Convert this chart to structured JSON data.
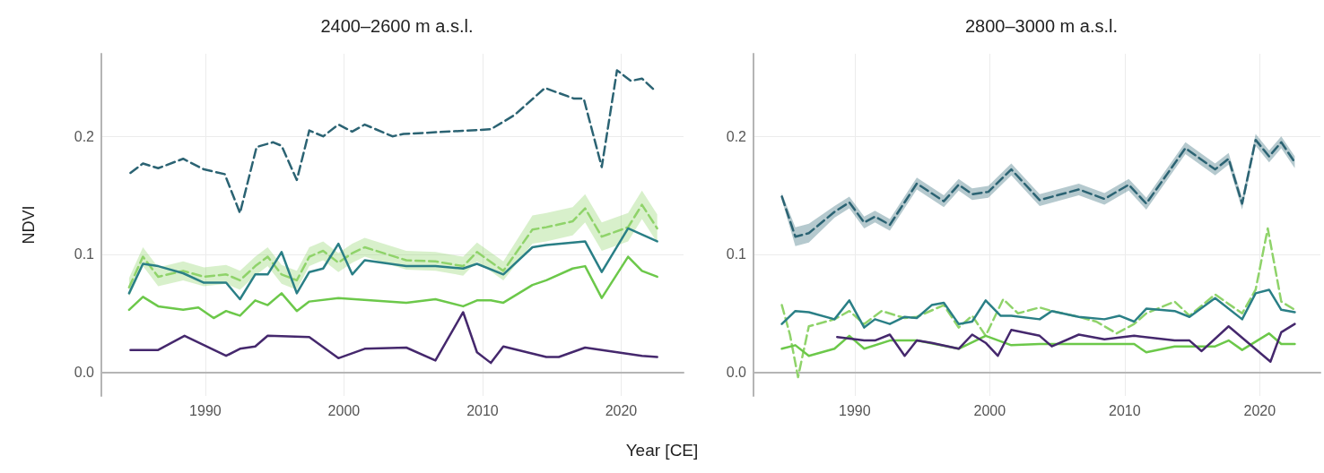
{
  "chart_data": [
    {
      "type": "line",
      "title": "2400–2600 m a.s.l.",
      "xlabel": "Year [CE]",
      "ylabel": "NDVI",
      "xlim": [
        1982.5,
        2024.5
      ],
      "ylim": [
        -0.02,
        0.27
      ],
      "xticks": [
        1990,
        2000,
        2010,
        2020
      ],
      "yticks": [
        {
          "value": 0,
          "label": "0.0"
        },
        {
          "value": 0.1,
          "label": "0.1"
        },
        {
          "value": 0.2,
          "label": "0.2"
        }
      ],
      "grid": true,
      "series": [
        {
          "color": "#2b6373",
          "line_style": "dashed",
          "x": [
            1984.6,
            1985.5,
            1986.6,
            1988.4,
            1989.9,
            1991.4,
            1992.5,
            1993.7,
            1994.9,
            1995.5,
            1996.6,
            1997.5,
            1998.5,
            1999.6,
            2000.6,
            2001.5,
            2003.5,
            2004.3,
            2010.6,
            2012.3,
            2014.5,
            2016.6,
            2017.3,
            2018.6,
            2019.7,
            2020.7,
            2021.5,
            2022.5
          ],
          "values": [
            0.169,
            0.177,
            0.173,
            0.181,
            0.172,
            0.168,
            0.135,
            0.191,
            0.195,
            0.192,
            0.163,
            0.205,
            0.2,
            0.21,
            0.204,
            0.21,
            0.2,
            0.202,
            0.206,
            0.218,
            0.241,
            0.232,
            0.232,
            0.174,
            0.256,
            0.247,
            0.249,
            0.238
          ]
        },
        {
          "color": "#8fd36a",
          "line_style": "dashed",
          "x": [
            1984.5,
            1985.5,
            1986.6,
            1988.4,
            1989.9,
            1991.5,
            1992.5,
            1993.6,
            1994.5,
            1995.5,
            1996.6,
            1997.5,
            1998.5,
            1999.6,
            2000.6,
            2001.5,
            2004.5,
            2006.6,
            2008.6,
            2009.6,
            2011.5,
            2013.6,
            2014.6,
            2016.5,
            2017.4,
            2018.6,
            2020.5,
            2021.5,
            2022.6
          ],
          "values": [
            0.072,
            0.098,
            0.081,
            0.086,
            0.081,
            0.083,
            0.078,
            0.09,
            0.098,
            0.083,
            0.078,
            0.098,
            0.103,
            0.093,
            0.101,
            0.106,
            0.095,
            0.094,
            0.09,
            0.102,
            0.086,
            0.121,
            0.123,
            0.128,
            0.139,
            0.115,
            0.123,
            0.142,
            0.122
          ],
          "lower": [
            0.064,
            0.09,
            0.073,
            0.078,
            0.073,
            0.075,
            0.07,
            0.082,
            0.09,
            0.075,
            0.07,
            0.09,
            0.095,
            0.085,
            0.093,
            0.098,
            0.087,
            0.086,
            0.082,
            0.094,
            0.078,
            0.109,
            0.111,
            0.116,
            0.127,
            0.103,
            0.111,
            0.13,
            0.11
          ],
          "upper": [
            0.08,
            0.106,
            0.089,
            0.094,
            0.089,
            0.091,
            0.086,
            0.098,
            0.106,
            0.091,
            0.086,
            0.106,
            0.111,
            0.101,
            0.109,
            0.114,
            0.103,
            0.102,
            0.098,
            0.11,
            0.094,
            0.133,
            0.135,
            0.14,
            0.151,
            0.127,
            0.135,
            0.154,
            0.134
          ]
        },
        {
          "color": "#2a7f86",
          "line_style": "solid",
          "x": [
            1984.5,
            1985.5,
            1986.6,
            1988.4,
            1989.9,
            1991.5,
            1992.5,
            1993.6,
            1994.5,
            1995.5,
            1996.6,
            1997.5,
            1998.5,
            1999.6,
            2000.6,
            2001.5,
            2004.5,
            2006.6,
            2008.6,
            2009.6,
            2011.5,
            2013.6,
            2014.6,
            2017.4,
            2018.6,
            2020.5,
            2022.6
          ],
          "values": [
            0.067,
            0.092,
            0.09,
            0.084,
            0.076,
            0.076,
            0.062,
            0.083,
            0.083,
            0.102,
            0.067,
            0.085,
            0.088,
            0.109,
            0.083,
            0.095,
            0.09,
            0.09,
            0.088,
            0.092,
            0.083,
            0.106,
            0.108,
            0.111,
            0.085,
            0.122,
            0.111
          ]
        },
        {
          "color": "#6cc84a",
          "line_style": "solid",
          "x": [
            1984.5,
            1985.5,
            1986.6,
            1988.4,
            1989.5,
            1990.6,
            1991.5,
            1992.5,
            1993.6,
            1994.5,
            1995.5,
            1996.6,
            1997.5,
            1999.6,
            2004.5,
            2006.6,
            2008.6,
            2009.6,
            2010.6,
            2011.5,
            2013.6,
            2014.6,
            2016.5,
            2017.4,
            2018.6,
            2020.5,
            2021.5,
            2022.6
          ],
          "values": [
            0.053,
            0.064,
            0.056,
            0.053,
            0.055,
            0.046,
            0.052,
            0.048,
            0.061,
            0.057,
            0.067,
            0.052,
            0.06,
            0.063,
            0.059,
            0.062,
            0.056,
            0.061,
            0.061,
            0.059,
            0.074,
            0.078,
            0.088,
            0.09,
            0.063,
            0.098,
            0.086,
            0.081
          ]
        },
        {
          "color": "#45286d",
          "line_style": "solid",
          "x": [
            1984.6,
            1986.6,
            1988.5,
            1991.5,
            1992.5,
            1993.6,
            1994.5,
            1997.5,
            1999.6,
            2001.5,
            2004.5,
            2006.6,
            2008.6,
            2009.6,
            2010.6,
            2011.5,
            2014.6,
            2015.5,
            2017.4,
            2021.5,
            2022.6
          ],
          "values": [
            0.019,
            0.019,
            0.031,
            0.014,
            0.02,
            0.022,
            0.031,
            0.03,
            0.012,
            0.02,
            0.021,
            0.01,
            0.051,
            0.017,
            0.008,
            0.022,
            0.013,
            0.013,
            0.021,
            0.014,
            0.013
          ]
        }
      ]
    },
    {
      "type": "line",
      "title": "2800–3000 m a.s.l.",
      "xlim": [
        1982.5,
        2024.5
      ],
      "ylim": [
        -0.02,
        0.27
      ],
      "xticks": [
        1990,
        2000,
        2010,
        2020
      ],
      "yticks": [
        {
          "value": 0,
          "label": "0.0"
        },
        {
          "value": 0.1,
          "label": "0.1"
        },
        {
          "value": 0.2,
          "label": "0.2"
        }
      ],
      "grid": true,
      "series": [
        {
          "color": "#2b6373",
          "line_style": "dashed",
          "x": [
            1984.6,
            1985.6,
            1986.6,
            1988.5,
            1989.6,
            1990.7,
            1991.5,
            1992.6,
            1994.6,
            1996.6,
            1997.7,
            1998.7,
            1999.9,
            2001.6,
            2003.7,
            2006.6,
            2008.5,
            2010.3,
            2011.6,
            2014.5,
            2016.7,
            2017.7,
            2018.7,
            2019.7,
            2020.7,
            2021.6,
            2022.6
          ],
          "values": [
            0.149,
            0.115,
            0.118,
            0.136,
            0.144,
            0.127,
            0.132,
            0.125,
            0.16,
            0.145,
            0.159,
            0.151,
            0.153,
            0.172,
            0.146,
            0.155,
            0.147,
            0.159,
            0.143,
            0.19,
            0.172,
            0.181,
            0.143,
            0.197,
            0.183,
            0.195,
            0.178
          ],
          "lower": [
            0.146,
            0.107,
            0.11,
            0.131,
            0.139,
            0.122,
            0.127,
            0.12,
            0.155,
            0.14,
            0.154,
            0.146,
            0.148,
            0.167,
            0.141,
            0.15,
            0.142,
            0.154,
            0.138,
            0.185,
            0.167,
            0.176,
            0.138,
            0.192,
            0.178,
            0.19,
            0.173
          ],
          "upper": [
            0.152,
            0.123,
            0.126,
            0.141,
            0.149,
            0.132,
            0.137,
            0.13,
            0.165,
            0.15,
            0.164,
            0.156,
            0.158,
            0.177,
            0.151,
            0.16,
            0.152,
            0.164,
            0.148,
            0.195,
            0.177,
            0.186,
            0.148,
            0.202,
            0.188,
            0.2,
            0.183
          ]
        },
        {
          "color": "#8fd36a",
          "line_style": "dashed",
          "x": [
            1984.6,
            1985.2,
            1985.8,
            1986.6,
            1988.5,
            1989.6,
            1990.7,
            1992.0,
            1993.7,
            1994.6,
            1996.6,
            1997.7,
            1998.7,
            1999.7,
            2001.0,
            2002.1,
            2003.7,
            2004.6,
            2006.6,
            2007.9,
            2009.4,
            2010.7,
            2011.6,
            2013.7,
            2014.8,
            2016.7,
            2018.7,
            2019.7,
            2020.6,
            2021.6,
            2022.6
          ],
          "values": [
            0.057,
            0.032,
            -0.004,
            0.039,
            0.045,
            0.052,
            0.041,
            0.052,
            0.046,
            0.047,
            0.057,
            0.038,
            0.048,
            0.031,
            0.062,
            0.05,
            0.055,
            0.052,
            0.047,
            0.043,
            0.033,
            0.041,
            0.05,
            0.06,
            0.048,
            0.066,
            0.05,
            0.07,
            0.122,
            0.06,
            0.053
          ]
        },
        {
          "color": "#2a7f86",
          "line_style": "solid",
          "x": [
            1984.6,
            1985.6,
            1986.6,
            1988.5,
            1989.6,
            1990.7,
            1991.5,
            1992.6,
            1993.7,
            1994.6,
            1995.7,
            1996.6,
            1997.7,
            1998.7,
            1999.7,
            2000.8,
            2001.6,
            2003.7,
            2004.6,
            2006.6,
            2008.5,
            2009.6,
            2010.7,
            2011.6,
            2013.7,
            2014.8,
            2016.7,
            2018.7,
            2019.7,
            2020.7,
            2021.6,
            2022.6
          ],
          "values": [
            0.041,
            0.052,
            0.051,
            0.045,
            0.061,
            0.038,
            0.045,
            0.041,
            0.047,
            0.046,
            0.057,
            0.059,
            0.041,
            0.043,
            0.061,
            0.048,
            0.048,
            0.045,
            0.052,
            0.047,
            0.045,
            0.048,
            0.043,
            0.054,
            0.052,
            0.047,
            0.063,
            0.045,
            0.067,
            0.07,
            0.053,
            0.051
          ]
        },
        {
          "color": "#6cc84a",
          "line_style": "solid",
          "x": [
            1984.6,
            1985.6,
            1986.6,
            1988.5,
            1989.6,
            1990.7,
            1992.6,
            1994.6,
            1997.7,
            1999.7,
            2001.6,
            2003.7,
            2010.7,
            2011.6,
            2013.7,
            2016.7,
            2017.7,
            2018.7,
            2020.7,
            2021.6,
            2022.6
          ],
          "values": [
            0.02,
            0.023,
            0.014,
            0.02,
            0.031,
            0.02,
            0.027,
            0.027,
            0.02,
            0.031,
            0.023,
            0.024,
            0.024,
            0.017,
            0.022,
            0.022,
            0.027,
            0.019,
            0.033,
            0.024,
            0.024
          ]
        },
        {
          "color": "#45286d",
          "line_style": "solid",
          "x": [
            1988.7,
            1990.7,
            1991.5,
            1992.6,
            1993.7,
            1994.6,
            1995.7,
            1997.7,
            1998.7,
            1999.7,
            2000.6,
            2001.6,
            2003.7,
            2004.6,
            2006.6,
            2008.5,
            2010.7,
            2013.7,
            2014.8,
            2015.7,
            2017.7,
            2020.8,
            2021.6,
            2022.6
          ],
          "values": [
            0.03,
            0.027,
            0.027,
            0.032,
            0.014,
            0.027,
            0.025,
            0.02,
            0.032,
            0.025,
            0.014,
            0.036,
            0.031,
            0.022,
            0.032,
            0.028,
            0.031,
            0.027,
            0.027,
            0.018,
            0.039,
            0.009,
            0.034,
            0.041
          ]
        }
      ]
    }
  ]
}
